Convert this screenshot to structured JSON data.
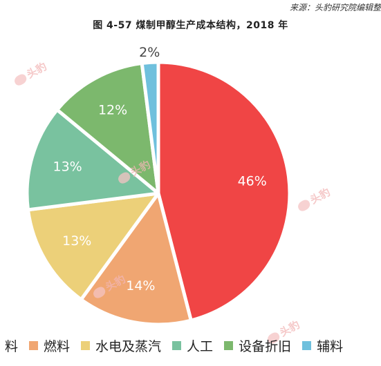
{
  "source": "来源：头豹研究院编辑整",
  "title": "图 4-57 煤制甲醇生产成本结构，2018 年",
  "watermark_text": "头豹",
  "chart_data": {
    "type": "pie",
    "title": "图 4-57 煤制甲醇生产成本结构，2018 年",
    "legend_position": "bottom",
    "slices": [
      {
        "label": "料",
        "value": 46,
        "display": "46%",
        "color": "#f04545",
        "text_color": "#ffffff"
      },
      {
        "label": "燃料",
        "value": 14,
        "display": "14%",
        "color": "#f0a672",
        "text_color": "#ffffff"
      },
      {
        "label": "水电及蒸汽",
        "value": 13,
        "display": "13%",
        "color": "#ecd079",
        "text_color": "#ffffff"
      },
      {
        "label": "人工",
        "value": 13,
        "display": "13%",
        "color": "#79c29f",
        "text_color": "#ffffff"
      },
      {
        "label": "设备折旧",
        "value": 12,
        "display": "12%",
        "color": "#7cb86d",
        "text_color": "#ffffff"
      },
      {
        "label": "辅料",
        "value": 2,
        "display": "2%",
        "color": "#6fc0dd",
        "text_color": "#444444"
      }
    ]
  }
}
